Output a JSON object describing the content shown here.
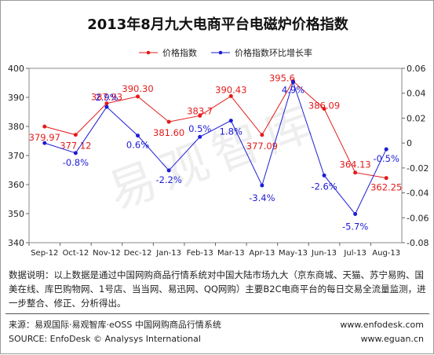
{
  "chart_data": {
    "type": "line",
    "title": "2013年8月九大电商平台电磁炉价格指数",
    "categories": [
      "Sep-12",
      "Oct-12",
      "Nov-12",
      "Dec-12",
      "Jan-13",
      "Feb-13",
      "Mar-13",
      "Apr-13",
      "May-13",
      "Jun-13",
      "Jul-13",
      "Aug-13"
    ],
    "series": [
      {
        "name": "价格指数",
        "axis": "left",
        "color": "#e31b1b",
        "values": [
          379.97,
          377.12,
          387.93,
          390.3,
          381.6,
          383.7,
          390.43,
          377.09,
          395.6,
          386.09,
          364.13,
          362.25
        ],
        "labels": [
          "379.97",
          "377.12",
          "387.93",
          "390.30",
          "381.60",
          "383.7",
          "390.43",
          "377.09",
          "395.6",
          "386.09",
          "364.13",
          "362.25"
        ]
      },
      {
        "name": "价格指数环比增长率",
        "axis": "right",
        "color": "#1c1cd6",
        "values": [
          0.0,
          -0.008,
          0.029,
          0.006,
          -0.022,
          0.005,
          0.018,
          -0.034,
          0.049,
          -0.026,
          -0.057,
          -0.005
        ],
        "labels": [
          "",
          "-0.8%",
          "2.9%",
          "0.6%",
          "-2.2%",
          "0.5%",
          "1.8%",
          "-3.4%",
          "4.9%",
          "-2.6%",
          "-5.7%",
          "-0.5%"
        ]
      }
    ],
    "ylim_left": [
      340,
      400
    ],
    "yticks_left": [
      "340",
      "350",
      "360",
      "370",
      "380",
      "390",
      "400"
    ],
    "ylim_right": [
      -0.08,
      0.06
    ],
    "yticks_right": [
      "-0.08",
      "-0.06",
      "-0.04",
      "-0.02",
      "0",
      "0.02",
      "0.04",
      "0.06"
    ],
    "grid": false,
    "legend_position": "top-center"
  },
  "watermark": "易观智库",
  "note": {
    "label": "数据说明：",
    "text": "以上数据是通过中国网购商品行情系统对中国大陆市场九大（京东商城、天猫、苏宁易购、国美在线、库巴购物网、1号店、当当网、易迅网、QQ网购）主要B2C电商平台的每日交易全流量监测，进一步整合、修正、分析得出。"
  },
  "footer": {
    "source_cn": "来源：易观国际·易观智库·eOSS 中国网购商品行情系统",
    "source_en": "SOURCE: EnfoDesk © Analysys International",
    "site1": "www.enfodesk.com",
    "site2": "www.eguan.cn"
  }
}
